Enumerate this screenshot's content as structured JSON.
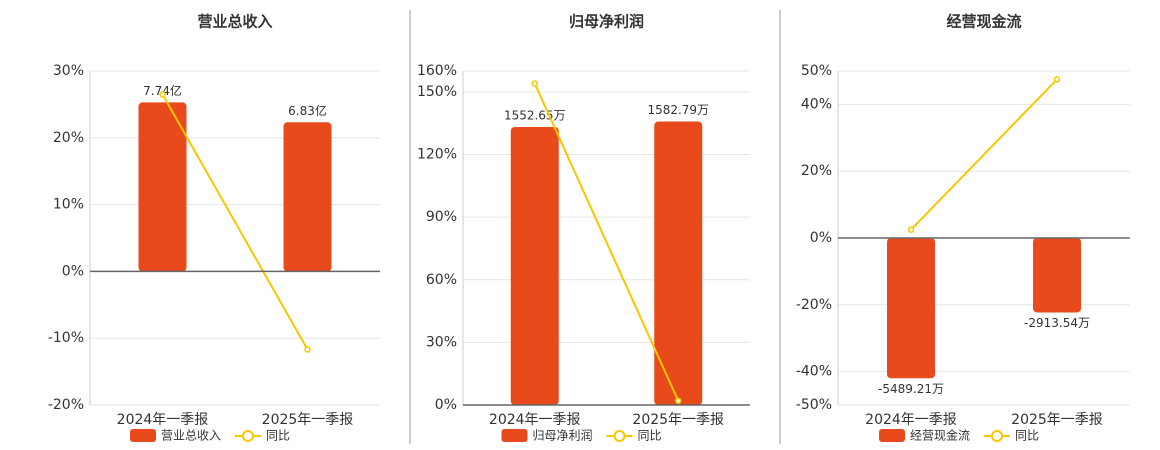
{
  "chart_data": [
    {
      "type": "bar-line",
      "title": "营业总收入",
      "categories": [
        "2024年一季报",
        "2025年一季报"
      ],
      "series": [
        {
          "name": "营业总收入",
          "color": "#e84a1b",
          "axis": "y2",
          "values": [
            7.74,
            6.83
          ],
          "value_labels": [
            "7.74亿",
            "6.83亿"
          ]
        },
        {
          "name": "同比",
          "color": "#f5c800",
          "values": [
            26.5,
            -11.7
          ]
        }
      ],
      "ylim": [
        -20,
        30
      ],
      "yticks": [
        {
          "value": -20,
          "label": "-20%"
        },
        {
          "value": -10,
          "label": "-10%"
        },
        {
          "value": 0,
          "label": "0%"
        },
        {
          "value": 10,
          "label": "10%"
        },
        {
          "value": 20,
          "label": "20%"
        },
        {
          "value": 30,
          "label": "30%"
        }
      ],
      "y2lim": [
        -6.12,
        9.18
      ],
      "grid": true
    },
    {
      "type": "bar-line",
      "title": "归母净利润",
      "categories": [
        "2024年一季报",
        "2025年一季报"
      ],
      "series": [
        {
          "name": "归母净利润",
          "color": "#e84a1b",
          "axis": "y2",
          "values": [
            1552.65,
            1582.79
          ],
          "value_labels": [
            "1552.65万",
            "1582.79万"
          ]
        },
        {
          "name": "同比",
          "color": "#f5c800",
          "values": [
            154,
            2
          ]
        }
      ],
      "ylim": [
        0,
        160
      ],
      "yticks": [
        {
          "value": 0,
          "label": "0%"
        },
        {
          "value": 30,
          "label": "30%"
        },
        {
          "value": 60,
          "label": "60%"
        },
        {
          "value": 90,
          "label": "90%"
        },
        {
          "value": 120,
          "label": "120%"
        },
        {
          "value": 150,
          "label": "150%"
        },
        {
          "value": 160,
          "label": "160%"
        }
      ],
      "y2lim": [
        0,
        1865
      ],
      "grid": true
    },
    {
      "type": "bar-line",
      "title": "经营现金流",
      "categories": [
        "2024年一季报",
        "2025年一季报"
      ],
      "series": [
        {
          "name": "经营现金流",
          "color": "#e84a1b",
          "axis": "y2",
          "values": [
            -5489.21,
            -2913.54
          ],
          "value_labels": [
            "-5489.21万",
            "-2913.54万"
          ]
        },
        {
          "name": "同比",
          "color": "#f5c800",
          "values": [
            2.5,
            47.5
          ]
        }
      ],
      "ylim": [
        -50,
        50
      ],
      "yticks": [
        {
          "value": -50,
          "label": "-50%"
        },
        {
          "value": -40,
          "label": "-40%"
        },
        {
          "value": -20,
          "label": "-20%"
        },
        {
          "value": 0,
          "label": "0%"
        },
        {
          "value": 20,
          "label": "20%"
        },
        {
          "value": 40,
          "label": "40%"
        },
        {
          "value": 50,
          "label": "50%"
        }
      ],
      "y2lim": [
        -6535,
        6535
      ],
      "grid": true
    }
  ]
}
